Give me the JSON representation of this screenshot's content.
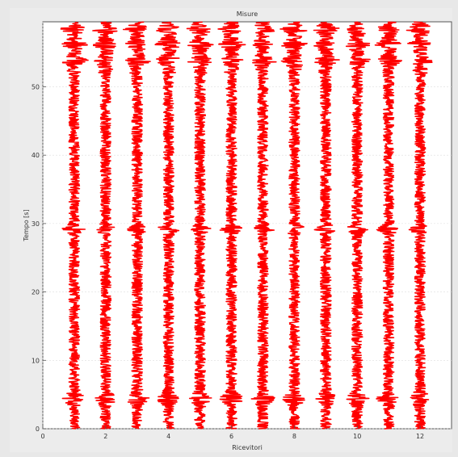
{
  "chart_data": {
    "type": "line",
    "title": "Misure",
    "xlabel": "Ricevitori",
    "ylabel": "Tempo [s]",
    "xlim": [
      0,
      13
    ],
    "ylim": [
      0,
      59.5
    ],
    "x_ticks": [
      0,
      2,
      4,
      6,
      8,
      10,
      12
    ],
    "y_ticks": [
      0,
      10,
      20,
      30,
      40,
      50
    ],
    "grid": true,
    "series_color": "#ff0000",
    "receivers": [
      1,
      2,
      3,
      4,
      5,
      6,
      7,
      8,
      9,
      10,
      11,
      12
    ],
    "trace_scale": 0.5,
    "strong_arrival_times": [
      4.4,
      29.2,
      53.8,
      56.2,
      58.4
    ]
  }
}
